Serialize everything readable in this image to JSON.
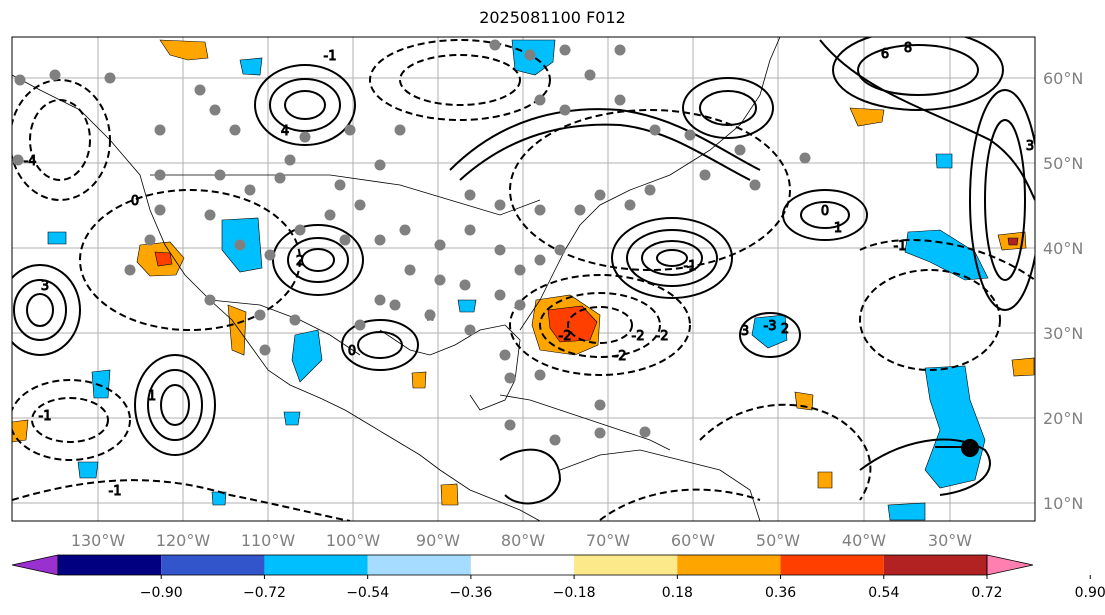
{
  "title": "2025081100 F012",
  "map": {
    "lon_labels": [
      "130°W",
      "120°W",
      "110°W",
      "100°W",
      "90°W",
      "80°W",
      "70°W",
      "60°W",
      "50°W",
      "40°W",
      "30°W"
    ],
    "lat_labels": [
      "60°N",
      "50°N",
      "40°N",
      "30°N",
      "20°N",
      "10°N"
    ],
    "contour_labels": [
      "3",
      "4",
      "2",
      "1",
      "0",
      "-1",
      "-2",
      "-2",
      "-1",
      "0",
      "1",
      "2",
      "3",
      "-3",
      "-4",
      "3",
      "6",
      "8",
      "-1",
      "-2",
      "1",
      "0",
      "-1",
      "-2",
      "-1"
    ],
    "grid": true,
    "dot_color": "#808080",
    "storm_marker_color": "#000000"
  },
  "colorbar": {
    "colors": [
      "#9b30d0",
      "#000080",
      "#3355cc",
      "#00bfff",
      "#a6dcff",
      "#ffffff",
      "#fce98a",
      "#ffa500",
      "#ff3f00",
      "#b22222",
      "#ff80b0"
    ],
    "tick_labels": [
      "−0.90",
      "−0.72",
      "−0.54",
      "−0.36",
      "−0.18",
      "0.18",
      "0.36",
      "0.54",
      "0.72",
      "0.90"
    ]
  }
}
